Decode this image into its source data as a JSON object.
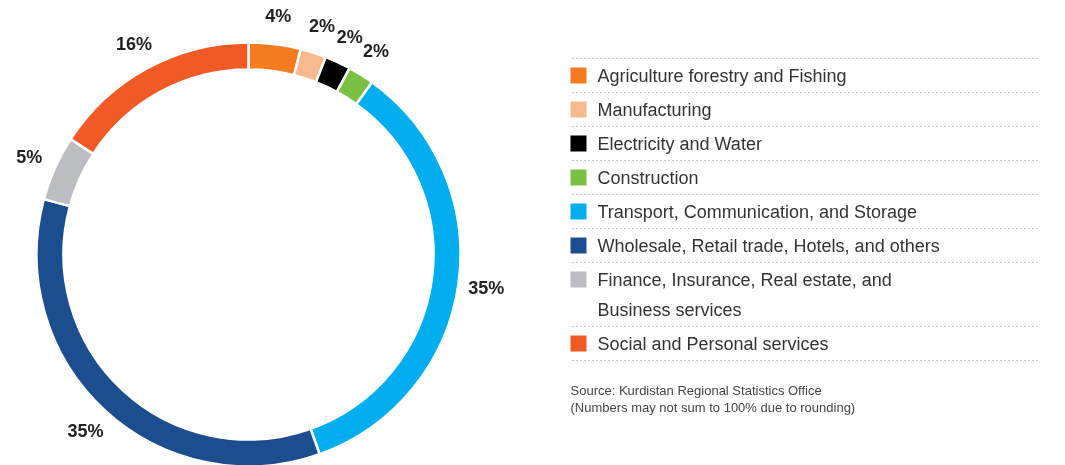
{
  "chart_data": {
    "type": "donut",
    "categories": [
      "Agriculture forestry and Fishing",
      "Manufacturing",
      "Electricity and Water",
      "Construction",
      "Transport, Communication, and Storage",
      "Wholesale, Retail trade, Hotels, and others",
      "Finance, Insurance, Real estate, and Business services",
      "Social and Personal services"
    ],
    "values": [
      4,
      2,
      2,
      2,
      35,
      35,
      5,
      16
    ],
    "colors": [
      "#f47b20",
      "#f9b98e",
      "#000000",
      "#7ac143",
      "#00aeef",
      "#1c4e8f",
      "#bcbdc0",
      "#f15a24"
    ],
    "value_labels": [
      "4%",
      "2%",
      "2%",
      "2%",
      "35%",
      "35%",
      "5%",
      "16%"
    ],
    "legend": "right",
    "annotations": [
      "Source: Kurdistan Regional Statistics Office",
      "(Numbers may not sum to 100% due to rounding)"
    ]
  }
}
